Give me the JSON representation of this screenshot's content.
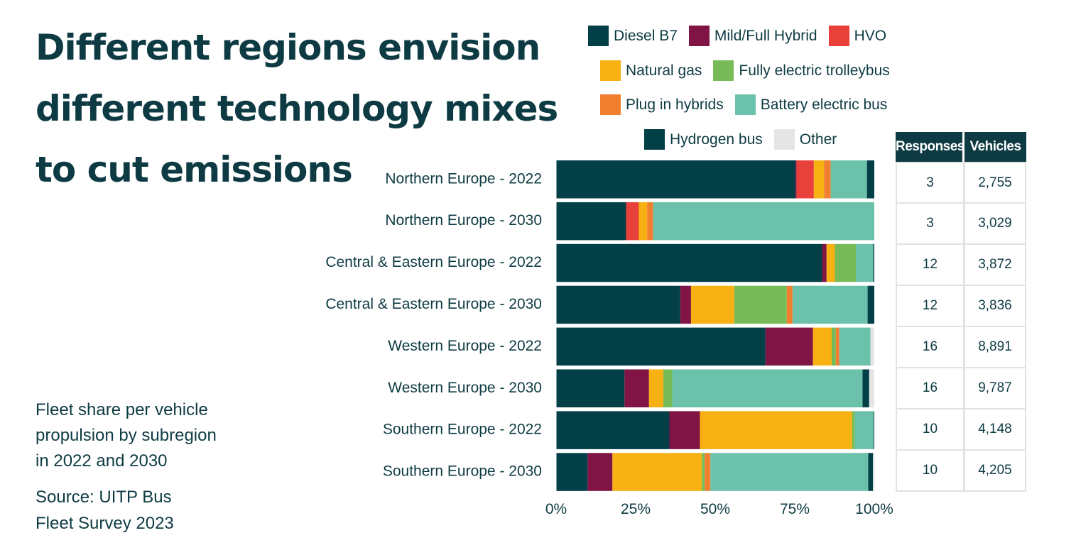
{
  "title_lines": [
    "Different regions envision",
    "different technology mixes",
    "to cut emissions"
  ],
  "subtitle_lines": [
    "Fleet share per vehicle",
    "propulsion by subregion",
    "in 2022 and 2030"
  ],
  "source_lines": [
    "Source: UITP Bus",
    "Fleet Survey 2023"
  ],
  "colors": {
    "diesel": "#023f46",
    "hybrid": "#801444",
    "hvo": "#e8403a",
    "natural_gas": "#f8b113",
    "trolleybus": "#77bb58",
    "plug_in": "#f07f30",
    "battery": "#6cc1aa",
    "hydrogen": "#023f46",
    "other": "#e5e5e5"
  },
  "legend": {
    "row1": [
      {
        "label": "Diesel B7",
        "color": "#023f46"
      },
      {
        "label": "Mild/Full Hybrid",
        "color": "#801444"
      },
      {
        "label": "HVO",
        "color": "#e8403a"
      }
    ],
    "row2": [
      {
        "label": "Natural gas",
        "color": "#f8b113"
      },
      {
        "label": "Fully electric trolleybus",
        "color": "#77bb58"
      }
    ],
    "row3": [
      {
        "label": "Plug in hybrids",
        "color": "#f07f30"
      },
      {
        "label": "Battery electric bus",
        "color": "#6cc1aa"
      }
    ],
    "row4": [
      {
        "label": "Hydrogen bus",
        "color": "#023f46"
      },
      {
        "label": "Other",
        "color": "#e5e5e5"
      }
    ]
  },
  "table": {
    "headers": [
      "Responses",
      "Vehicles"
    ],
    "rows": [
      [
        "3",
        "2,755"
      ],
      [
        "3",
        "3,029"
      ],
      [
        "12",
        "3,872"
      ],
      [
        "12",
        "3,836"
      ],
      [
        "16",
        "8,891"
      ],
      [
        "16",
        "9,787"
      ],
      [
        "10",
        "4,148"
      ],
      [
        "10",
        "4,205"
      ]
    ]
  },
  "chart_data": {
    "type": "bar",
    "orientation": "horizontal",
    "stacked": true,
    "title": "",
    "xlabel": "",
    "ylabel": "",
    "xlim": [
      0,
      100
    ],
    "x_ticks": [
      "0%",
      "25%",
      "50%",
      "75%",
      "100%"
    ],
    "legend_position": "top-right",
    "categories": [
      "Northern Europe - 2022",
      "Northern Europe - 2030",
      "Central & Eastern Europe - 2022",
      "Central & Eastern Europe - 2030",
      "Western Europe - 2022",
      "Western Europe - 2030",
      "Southern Europe - 2022",
      "Southern Europe - 2030"
    ],
    "series": [
      {
        "name": "Diesel B7",
        "color": "#023f46",
        "values": [
          75.2,
          22.0,
          83.6,
          39.0,
          65.8,
          21.5,
          35.6,
          9.9
        ]
      },
      {
        "name": "Mild/Full Hybrid",
        "color": "#801444",
        "values": [
          0.4,
          0.0,
          1.4,
          3.4,
          14.9,
          7.7,
          9.6,
          7.8
        ]
      },
      {
        "name": "HVO",
        "color": "#e8403a",
        "values": [
          5.4,
          4.0,
          0.0,
          0.0,
          0.0,
          0.0,
          0.0,
          0.0
        ]
      },
      {
        "name": "Natural gas",
        "color": "#f8b113",
        "values": [
          3.2,
          2.6,
          2.6,
          13.6,
          5.9,
          4.5,
          47.8,
          28.1
        ]
      },
      {
        "name": "Fully electric trolleybus",
        "color": "#77bb58",
        "values": [
          0.0,
          0.0,
          6.6,
          16.5,
          1.3,
          2.8,
          0.9,
          0.9
        ]
      },
      {
        "name": "Plug in hybrids",
        "color": "#f07f30",
        "values": [
          2.1,
          1.9,
          0.0,
          1.8,
          1.1,
          0.0,
          0.0,
          1.8
        ]
      },
      {
        "name": "Battery electric bus",
        "color": "#6cc1aa",
        "values": [
          11.4,
          69.5,
          5.5,
          23.6,
          9.8,
          59.8,
          5.9,
          49.6
        ]
      },
      {
        "name": "Hydrogen bus",
        "color": "#023f46",
        "values": [
          2.3,
          0.0,
          0.3,
          2.1,
          0.0,
          2.1,
          0.2,
          1.5
        ]
      },
      {
        "name": "Other",
        "color": "#e5e5e5",
        "values": [
          0.0,
          0.0,
          0.0,
          0.0,
          1.2,
          1.6,
          0.0,
          0.4
        ]
      }
    ]
  }
}
